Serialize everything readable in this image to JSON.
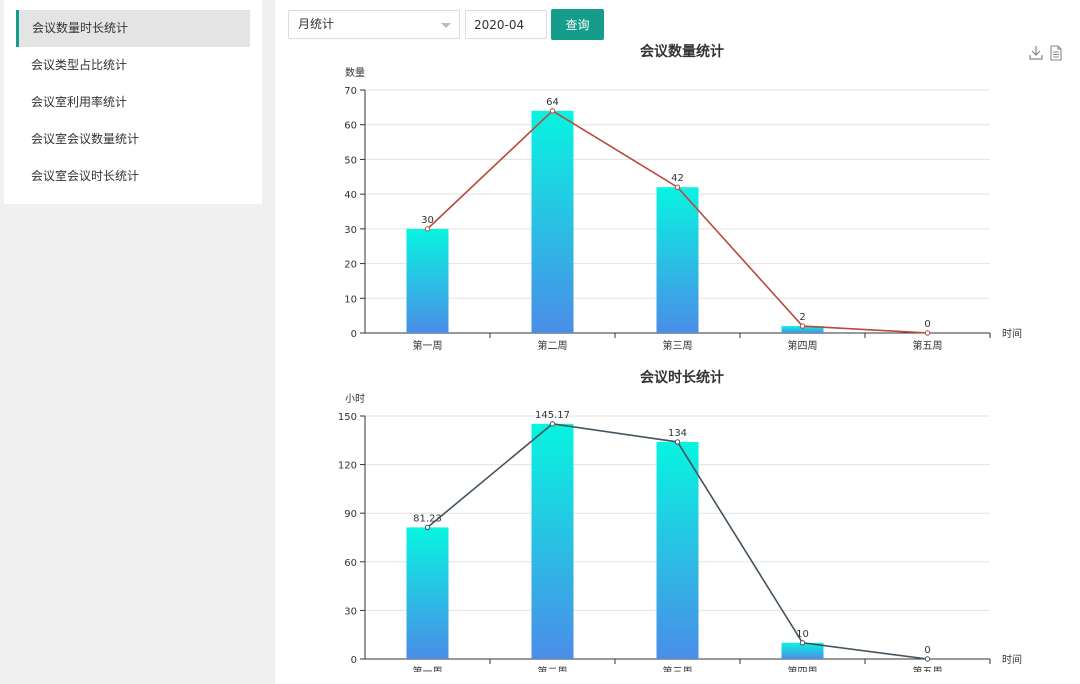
{
  "sidebar": {
    "items": [
      {
        "label": "会议数量时长统计",
        "active": true
      },
      {
        "label": "会议类型占比统计",
        "active": false
      },
      {
        "label": "会议室利用率统计",
        "active": false
      },
      {
        "label": "会议室会议数量统计",
        "active": false
      },
      {
        "label": "会议室会议时长统计",
        "active": false
      }
    ]
  },
  "filters": {
    "period_select": "月统计",
    "date_value": "2020-04",
    "query_label": "查询"
  },
  "toolbox": {
    "icons": [
      "download-icon",
      "data-view-icon"
    ]
  },
  "colors": {
    "accent": "#169c8a",
    "bar_top": "#08f4e0",
    "bar_bottom": "#4a8de8",
    "line1": "#b84a3d",
    "line2": "#44545e"
  },
  "chart_data": [
    {
      "type": "bar",
      "title": "会议数量统计",
      "ylabel": "数量",
      "xlabel": "时间",
      "categories": [
        "第一周",
        "第二周",
        "第三周",
        "第四周",
        "第五周"
      ],
      "values": [
        30,
        64,
        42,
        2,
        0
      ],
      "value_labels": [
        "30",
        "64",
        "42",
        "2",
        "0"
      ],
      "ylim": [
        0,
        70
      ],
      "yticks": [
        0,
        10,
        20,
        30,
        40,
        50,
        60,
        70
      ],
      "line_overlay": true,
      "grid": true
    },
    {
      "type": "bar",
      "title": "会议时长统计",
      "ylabel": "小时",
      "xlabel": "时间",
      "categories": [
        "第一周",
        "第二周",
        "第三周",
        "第四周",
        "第五周"
      ],
      "values": [
        81.23,
        145.17,
        134,
        10,
        0
      ],
      "value_labels": [
        "81.23",
        "145.17",
        "134",
        "10",
        "0"
      ],
      "ylim": [
        0,
        150
      ],
      "yticks": [
        0,
        30,
        60,
        90,
        120,
        150
      ],
      "line_overlay": true,
      "grid": true
    }
  ]
}
